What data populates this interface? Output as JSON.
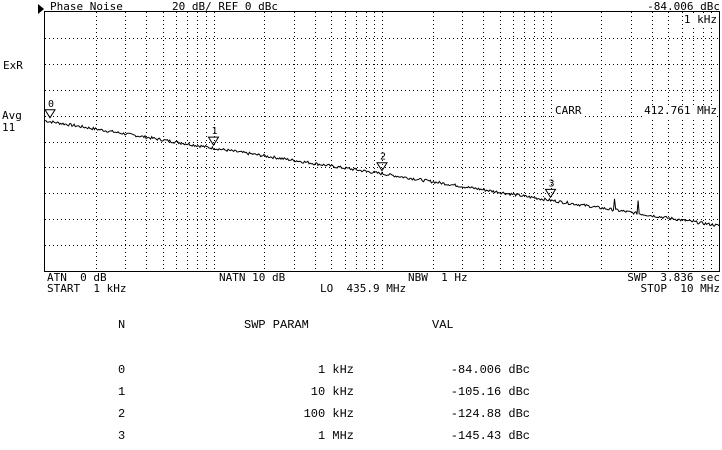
{
  "header": {
    "mode": "Phase Noise",
    "scale": "20 dB/ REF 0 dBc",
    "marker_readout": "-84.006 dBc",
    "marker_freq": "1 kHz"
  },
  "side_labels": {
    "exr": "ExR",
    "avg": "Avg",
    "avg_count": "11"
  },
  "carrier": {
    "label": "CARR",
    "value": "412.761 MHz"
  },
  "footer": {
    "atn": "ATN  0 dB",
    "natn": "NATN 10 dB",
    "nbw": "NBW  1 Hz",
    "swp": "SWP  3.836 sec",
    "start": "START  1 kHz",
    "lo": "LO  435.9 MHz",
    "stop": "STOP  10 MHz"
  },
  "markers": [
    "0",
    "1",
    "2",
    "3"
  ],
  "table": {
    "headers": [
      "N",
      "SWP PARAM",
      "VAL"
    ],
    "rows": [
      {
        "n": "0",
        "param": "1 kHz",
        "val": "-84.006 dBc"
      },
      {
        "n": "1",
        "param": "10 kHz",
        "val": "-105.16 dBc"
      },
      {
        "n": "2",
        "param": "100 kHz",
        "val": "-124.88 dBc"
      },
      {
        "n": "3",
        "param": "1 MHz",
        "val": "-145.43 dBc"
      }
    ]
  },
  "chart_data": {
    "type": "line",
    "x_scale": "log",
    "x_range_hz": [
      1000,
      10000000
    ],
    "y_range_dbc": [
      -200,
      0
    ],
    "grid": true,
    "series": [
      {
        "x": [
          1000,
          10000,
          100000,
          1000000,
          10000000
        ],
        "y": [
          -84.006,
          -105.16,
          -124.88,
          -145.43,
          -165
        ]
      }
    ]
  }
}
